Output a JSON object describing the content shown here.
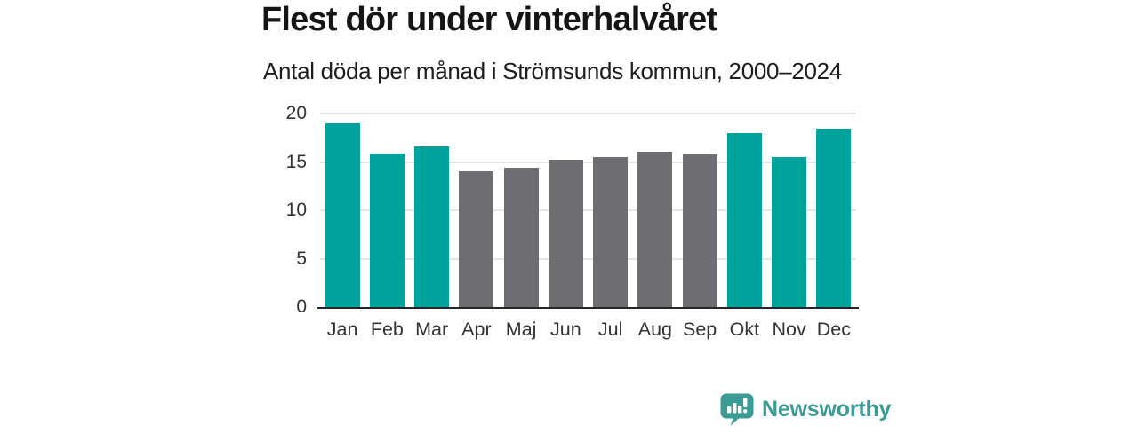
{
  "header": {
    "title": "Flest dör under vinterhalvåret",
    "subtitle": "Antal döda per månad i Strömsunds kommun, 2000–2024"
  },
  "chart_data": {
    "type": "bar",
    "title": "Flest dör under vinterhalvåret",
    "subtitle": "Antal döda per månad i Strömsunds kommun, 2000–2024",
    "categories": [
      "Jan",
      "Feb",
      "Mar",
      "Apr",
      "Maj",
      "Jun",
      "Jul",
      "Aug",
      "Sep",
      "Okt",
      "Nov",
      "Dec"
    ],
    "values": [
      19.0,
      15.9,
      16.6,
      14.0,
      14.4,
      15.2,
      15.5,
      16.1,
      15.8,
      18.0,
      15.5,
      18.4
    ],
    "bar_colors": [
      "#00a39b",
      "#00a39b",
      "#00a39b",
      "#6d6d72",
      "#6d6d72",
      "#6d6d72",
      "#6d6d72",
      "#6d6d72",
      "#6d6d72",
      "#00a39b",
      "#00a39b",
      "#00a39b"
    ],
    "xlabel": "",
    "ylabel": "",
    "ylim": [
      0,
      20
    ],
    "yticks": [
      0,
      5,
      10,
      15,
      20
    ],
    "grid": true,
    "legend": false,
    "colors": {
      "winter_highlight": "#00a39b",
      "summer_muted": "#6d6d72",
      "gridline": "#e5e5e5",
      "axis_line": "#262626",
      "tick_text": "#333333"
    }
  },
  "branding": {
    "logo_text": "Newsworthy",
    "logo_color": "#3b9c95",
    "logo_icon": "bar-chart-speech-bubble-icon"
  }
}
